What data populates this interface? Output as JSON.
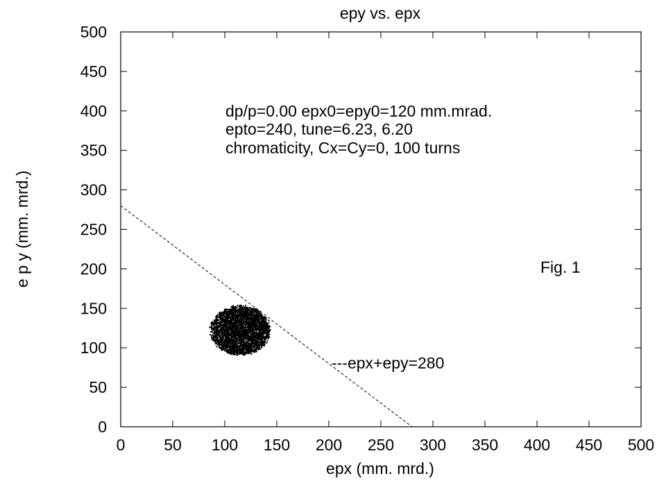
{
  "chart_data": {
    "type": "scatter",
    "title": "epy vs. epx",
    "xlabel": "epx  (mm. mrd.)",
    "ylabel": "e p y  (mm. mrd.)",
    "xlim": [
      0,
      500
    ],
    "ylim": [
      0,
      500
    ],
    "xticks": [
      0,
      50,
      100,
      150,
      200,
      250,
      300,
      350,
      400,
      450,
      500
    ],
    "yticks": [
      0,
      50,
      100,
      150,
      200,
      250,
      300,
      350,
      400,
      450,
      500
    ],
    "grid": false,
    "annotations": {
      "params_line1": "dp/p=0.00 epx0=epy0=120 mm.mrad.",
      "params_line2": "epto=240,  tune=6.23, 6.20",
      "params_line3": "chromaticity, Cx=Cy=0, 100 turns",
      "figure_label": "Fig. 1",
      "line_label": "---epx+epy=280"
    },
    "reference_line": {
      "equation": "epx+epy=280",
      "style": "dashed",
      "points": [
        [
          0,
          280
        ],
        [
          280,
          0
        ]
      ]
    },
    "series": [
      {
        "distribution": "cloud",
        "center": [
          115,
          122
        ],
        "spread_x": [
          87,
          143
        ],
        "spread_y": [
          92,
          153
        ],
        "color": "#000000"
      }
    ]
  }
}
